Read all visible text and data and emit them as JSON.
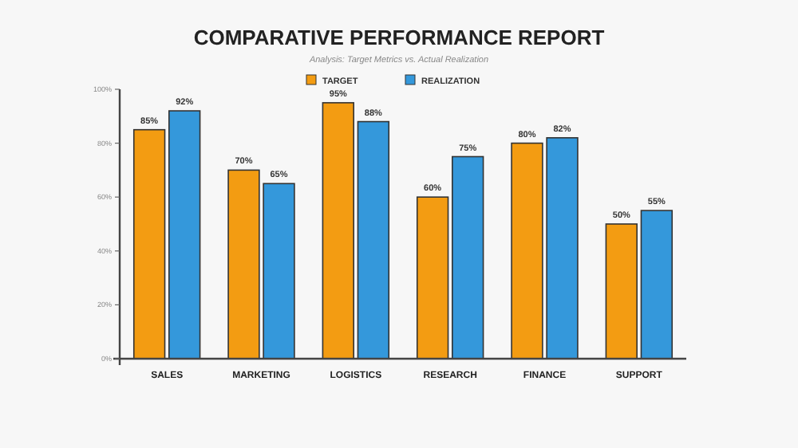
{
  "chart_data": {
    "type": "bar",
    "title": "COMPARATIVE PERFORMANCE REPORT",
    "subtitle": "Analysis: Target Metrics vs. Actual Realization",
    "categories": [
      "SALES",
      "MARKETING",
      "LOGISTICS",
      "RESEARCH",
      "FINANCE",
      "SUPPORT"
    ],
    "series": [
      {
        "name": "TARGET",
        "color": "#f39c12",
        "values": [
          85,
          70,
          95,
          60,
          80,
          50
        ],
        "value_labels": [
          "85%",
          "70%",
          "95%",
          "60%",
          "80%",
          "50%"
        ]
      },
      {
        "name": "REALIZATION",
        "color": "#3498db",
        "values": [
          92,
          65,
          88,
          75,
          82,
          55
        ],
        "value_labels": [
          "92%",
          "65%",
          "88%",
          "75%",
          "82%",
          "55%"
        ]
      }
    ],
    "ylim": [
      0,
      100
    ],
    "yticks": [
      {
        "value": 0,
        "label": "0%"
      },
      {
        "value": 20,
        "label": "20%"
      },
      {
        "value": 40,
        "label": "40%"
      },
      {
        "value": 60,
        "label": "60%"
      },
      {
        "value": 80,
        "label": "80%"
      },
      {
        "value": 100,
        "label": "100%"
      }
    ],
    "legend": "top"
  }
}
